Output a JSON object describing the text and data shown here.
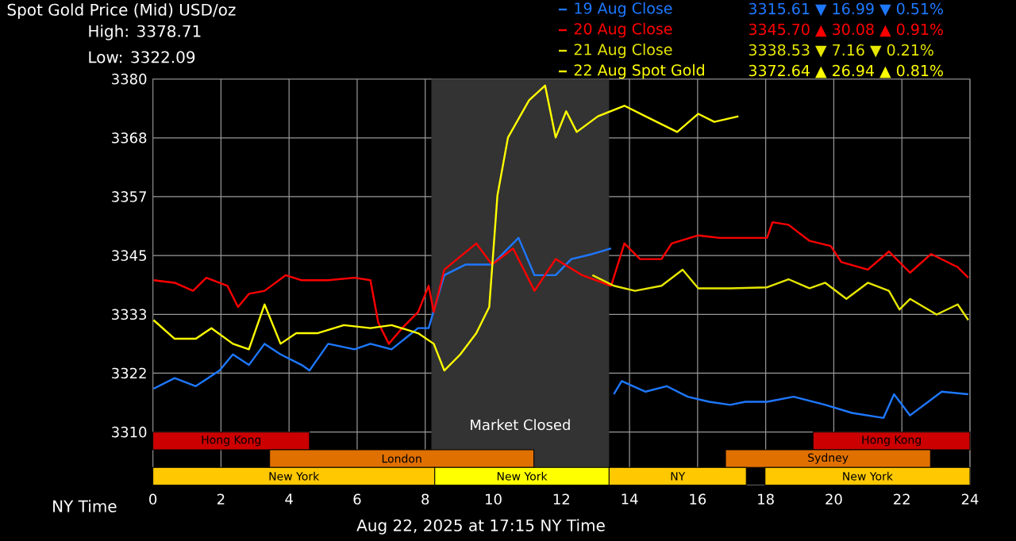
{
  "chart_data": {
    "type": "line",
    "title": "Spot Gold Price (Mid) USD/oz",
    "xlabel": "NY Time",
    "annotations": [
      "High: 3378.71",
      "Low: 3322.09",
      "3315.61 ▼ 16.99 ▼ 0.51%",
      "3345.70 ▲ 30.08 ▲ 0.91%",
      "3338.53 ▼ 7.16 ▼ 0.21%",
      "3372.64 ▲ 26.94 ▲ 0.81%",
      "Aug 22, 2025 at 17:15 NY Time"
    ],
    "xlim": [
      0,
      24
    ],
    "xticks": [
      0,
      2,
      4,
      6,
      8,
      10,
      12,
      14,
      16,
      18,
      20,
      22,
      24
    ],
    "ylim": [
      3299.5,
      3380
    ],
    "yticks": [
      3310,
      {
        "value": 3321.67,
        "label": "3322"
      },
      {
        "value": 3333.33,
        "label": "3333"
      },
      3345,
      {
        "value": 3356.67,
        "label": "3357"
      },
      {
        "value": 3368.33,
        "label": "3368"
      },
      3380
    ],
    "grid": true,
    "legend": "top right",
    "bands": [
      {
        "axis": "x",
        "from": 8.18,
        "to": 13.4,
        "label": "Market Closed",
        "color": "#333333"
      },
      {
        "axis": "x",
        "from": 0,
        "to": 4.6,
        "label": "Hong Kong",
        "color": "#cc0000"
      },
      {
        "axis": "x",
        "from": 19.39,
        "to": 24,
        "label": "Hong Kong",
        "color": "#cc0000"
      },
      {
        "axis": "x",
        "from": 3.43,
        "to": 11.19,
        "label": "London",
        "color": "#e07000"
      },
      {
        "axis": "x",
        "from": 16.82,
        "to": 22.84,
        "label": "Sydney",
        "color": "#e07000"
      },
      {
        "axis": "x",
        "from": 0,
        "to": 8.28,
        "label": "New York",
        "color": "#ffc800"
      },
      {
        "axis": "x",
        "from": 8.28,
        "to": 13.4,
        "label": "New York",
        "color": "#ffff00"
      },
      {
        "axis": "x",
        "from": 13.4,
        "to": 17.43,
        "label": "NY",
        "color": "#ffc800"
      },
      {
        "axis": "x",
        "from": 17.98,
        "to": 24,
        "label": "New York",
        "color": "#ffc800"
      }
    ],
    "series": [
      {
        "name": "19 Aug Close",
        "color": "#1e78ff",
        "x": [
          0.02,
          0.64,
          1.26,
          1.96,
          2.35,
          2.82,
          3.28,
          3.75,
          4.37,
          4.6,
          5.15,
          5.92,
          6.39,
          7.01,
          7.79,
          8.1,
          8.56,
          9.18,
          9.96,
          10.74,
          11.21,
          11.83,
          12.29,
          12.91,
          13.46,
          13.5,
          13.54,
          13.77,
          14.47,
          15.09,
          15.71,
          16.34,
          16.96,
          17.4,
          18.04,
          18.82,
          19.75,
          20.53,
          21.46,
          21.77,
          22.24,
          23.17,
          23.95
        ],
        "values": [
          3318.6,
          3320.7,
          3319.1,
          3322.2,
          3325.4,
          3323.3,
          3327.5,
          3325.4,
          3323.3,
          3322.2,
          3327.5,
          3326.4,
          3327.5,
          3326.4,
          3330.6,
          3330.6,
          3341.1,
          3343.2,
          3343.2,
          3348.5,
          3341.1,
          3341.1,
          3344.3,
          3345.3,
          3346.4,
          null,
          3317.5,
          3320.1,
          3318.0,
          3319.1,
          3317.0,
          3316.0,
          3315.4,
          3316.0,
          3316.0,
          3317.0,
          3315.4,
          3313.8,
          3312.8,
          3317.5,
          3313.3,
          3318.0,
          3317.5
        ]
      },
      {
        "name": "20 Aug Close",
        "color": "#ff0000",
        "x": [
          0.02,
          0.64,
          1.18,
          1.57,
          2.19,
          2.5,
          2.82,
          3.28,
          3.9,
          4.37,
          5.15,
          5.92,
          6.39,
          6.62,
          6.93,
          7.32,
          7.79,
          8.1,
          8.25,
          8.56,
          9.5,
          9.96,
          10.58,
          11.21,
          11.83,
          12.61,
          13.46,
          13.85,
          14.31,
          14.94,
          15.24,
          16.02,
          16.64,
          18.04,
          18.2,
          18.67,
          19.29,
          19.91,
          20.22,
          21.0,
          21.62,
          22.24,
          22.86,
          23.64,
          23.95
        ],
        "values": [
          3340.1,
          3339.6,
          3338.0,
          3340.6,
          3339.0,
          3334.8,
          3337.4,
          3338.0,
          3341.1,
          3340.1,
          3340.1,
          3340.6,
          3340.1,
          3331.7,
          3327.5,
          3330.6,
          3333.8,
          3339.0,
          3333.8,
          3342.2,
          3347.4,
          3343.2,
          3346.4,
          3338.0,
          3344.3,
          3341.1,
          3339.0,
          3347.4,
          3344.3,
          3344.3,
          3347.4,
          3349.0,
          3348.5,
          3348.5,
          3351.6,
          3351.1,
          3347.9,
          3346.9,
          3343.7,
          3342.2,
          3345.8,
          3341.6,
          3345.3,
          3342.7,
          3340.6
        ]
      },
      {
        "name": "21 Aug Close",
        "color": "#e6e600",
        "x": [
          12.91,
          13.54,
          14.16,
          14.94,
          15.56,
          16.02,
          16.96,
          18.04,
          18.67,
          19.29,
          19.75,
          20.37,
          21.0,
          21.62,
          21.93,
          22.24,
          23.02,
          23.64,
          23.95
        ],
        "values": [
          3341.1,
          3339.0,
          3338.0,
          3339.0,
          3342.2,
          3338.5,
          3338.5,
          3338.7,
          3340.3,
          3338.5,
          3339.6,
          3336.4,
          3339.6,
          3338.0,
          3334.3,
          3336.4,
          3333.3,
          3335.3,
          3332.2
        ]
      },
      {
        "name": "22 Aug Spot Gold",
        "color": "#ffff00",
        "x": [
          0.02,
          0.64,
          1.26,
          1.72,
          2.35,
          2.82,
          3.28,
          3.75,
          4.21,
          4.83,
          5.61,
          6.39,
          7.01,
          7.79,
          8.25,
          8.56,
          9.03,
          9.5,
          9.88,
          10.12,
          10.43,
          11.05,
          11.52,
          11.83,
          12.14,
          12.45,
          13.07,
          13.85,
          14.47,
          15.4,
          16.02,
          16.49,
          17.2
        ],
        "values": [
          3332.2,
          3328.5,
          3328.5,
          3330.6,
          3327.5,
          3326.4,
          3335.3,
          3327.5,
          3329.6,
          3329.6,
          3331.2,
          3330.6,
          3331.2,
          3329.6,
          3327.5,
          3322.2,
          3325.4,
          3329.6,
          3334.8,
          3356.9,
          3368.4,
          3375.8,
          3378.7,
          3368.4,
          3373.6,
          3369.5,
          3372.6,
          3374.7,
          3372.6,
          3369.5,
          3373.1,
          3371.5,
          3372.6
        ]
      }
    ]
  }
}
